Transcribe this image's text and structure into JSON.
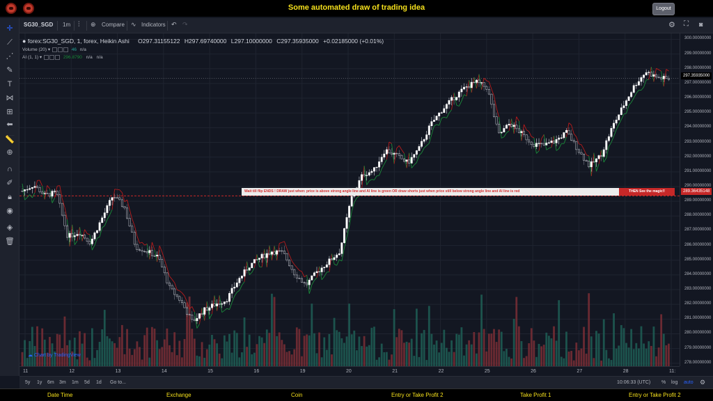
{
  "header": {
    "title": "Some automated draw of trading idea",
    "logout": "Logout"
  },
  "toolbar": {
    "symbol": "SG30_SGD",
    "interval": "1m",
    "compare": "Compare",
    "indicators": "Indicators"
  },
  "legend": {
    "main": "forex:SG30_SGD, 1, forex, Heikin Ashi",
    "o": "O297.31155122",
    "h": "H297.69740000",
    "l": "L297.10000000",
    "c": "C297.35935000",
    "chg": "+0.02185000 (+0.01%)",
    "volume_label": "Volume (20)",
    "volume_value": "46",
    "volume_na": "n/a",
    "ai_label": "AI (1, 1)",
    "ai_value": "296.8790",
    "ai_na1": "n/a",
    "ai_na2": "n/a"
  },
  "annotation": {
    "text": "Wait till flip ENDS  !   DRAW just when:  price is above strong angle line and AI line is green          OR          draw shorts just when price still below strong angle line and AI line is red",
    "cta": "THEN See the magic!!"
  },
  "price_labels": {
    "last": "297.35935000",
    "line": "289.36435148"
  },
  "watermark": "Chart by TradingView",
  "bottom": {
    "ranges": [
      "5y",
      "1y",
      "6m",
      "3m",
      "1m",
      "5d",
      "1d"
    ],
    "goto": "Go to...",
    "time": "10:06:33 (UTC)",
    "percent": "%",
    "log": "log",
    "auto": "auto"
  },
  "footer": [
    "Date Time",
    "Exchange",
    "Coin",
    "Entry or Take Profit 2",
    "Take Profit 1",
    "Entry or Take Profit 2"
  ],
  "colors": {
    "up": "#26a69a",
    "down": "#ef5350",
    "candle_up": "#ffffff",
    "candle_down": "#5d606b",
    "ai_green": "#1b8a3a",
    "ai_red": "#b71c1c",
    "title": "#f5e01c"
  },
  "chart_data": {
    "type": "candlestick",
    "yticks": [
      "300.00000000",
      "299.00000000",
      "298.00000000",
      "297.00000000",
      "296.00000000",
      "295.00000000",
      "294.00000000",
      "293.00000000",
      "292.00000000",
      "291.00000000",
      "290.00000000",
      "289.00000000",
      "288.00000000",
      "287.00000000",
      "286.00000000",
      "285.00000000",
      "284.00000000",
      "283.00000000",
      "282.00000000",
      "281.00000000",
      "280.00000000",
      "279.00000000",
      "278.00000000"
    ],
    "xticks": [
      "11",
      "12",
      "13",
      "14",
      "15",
      "16",
      "19",
      "20",
      "21",
      "22",
      "25",
      "26",
      "27",
      "28",
      "11:"
    ],
    "ylim": [
      277.8,
      300.4
    ],
    "close_path": [
      [
        0,
        289.7
      ],
      [
        1,
        290.1
      ],
      [
        2,
        289.4
      ],
      [
        3,
        289.6
      ],
      [
        4,
        286.6
      ],
      [
        5,
        286.9
      ],
      [
        6,
        286.2
      ],
      [
        7,
        287.8
      ],
      [
        8,
        289.4
      ],
      [
        9,
        288.6
      ],
      [
        10,
        285.9
      ],
      [
        11,
        285.6
      ],
      [
        12,
        285.2
      ],
      [
        13,
        283.1
      ],
      [
        14,
        282.2
      ],
      [
        15,
        280.8
      ],
      [
        16,
        281.6
      ],
      [
        17,
        282.0
      ],
      [
        18,
        282.3
      ],
      [
        19,
        283.6
      ],
      [
        20,
        284.6
      ],
      [
        21,
        285.2
      ],
      [
        22,
        285.6
      ],
      [
        23,
        285.5
      ],
      [
        24,
        284.1
      ],
      [
        25,
        283.3
      ],
      [
        26,
        284.2
      ],
      [
        27,
        284.9
      ],
      [
        28,
        285.6
      ],
      [
        29,
        289.2
      ],
      [
        30,
        290.8
      ],
      [
        31,
        291.1
      ],
      [
        32,
        292.5
      ],
      [
        33,
        292.1
      ],
      [
        34,
        291.6
      ],
      [
        35,
        292.6
      ],
      [
        36,
        294.2
      ],
      [
        37,
        295.2
      ],
      [
        38,
        296.0
      ],
      [
        39,
        296.7
      ],
      [
        40,
        297.1
      ],
      [
        41,
        296.7
      ],
      [
        42,
        293.5
      ],
      [
        43,
        294.3
      ],
      [
        44,
        293.6
      ],
      [
        45,
        292.9
      ],
      [
        46,
        292.8
      ],
      [
        47,
        293.1
      ],
      [
        48,
        293.7
      ],
      [
        49,
        292.5
      ],
      [
        50,
        291.4
      ],
      [
        51,
        292.1
      ],
      [
        52,
        294.0
      ],
      [
        53,
        295.5
      ],
      [
        54,
        296.9
      ],
      [
        55,
        297.8
      ],
      [
        56,
        297.4
      ],
      [
        57,
        297.3
      ]
    ],
    "x_range": [
      0,
      57
    ],
    "vol_max": 180
  }
}
